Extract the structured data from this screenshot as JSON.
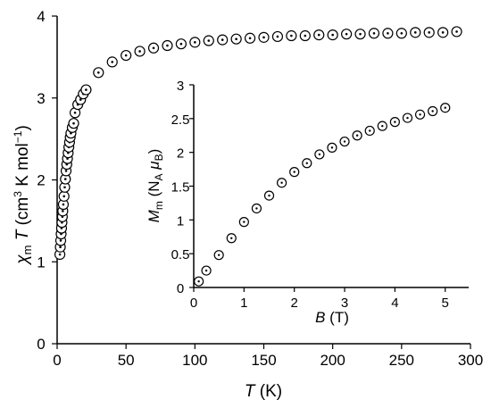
{
  "chart_data": [
    {
      "type": "scatter",
      "xlabel": {
        "main": "T",
        "unit": "(K)"
      },
      "ylabel": {
        "chi": "χ",
        "chi_sub": "m",
        "T": "T",
        "unit_start": "(cm",
        "unit_sup": "3",
        "unit_mid": " K mol",
        "unit_sup2": "−1",
        "unit_end": ")"
      },
      "xlim": [
        0,
        300
      ],
      "ylim": [
        0,
        4
      ],
      "xticks": [
        "0",
        "50",
        "100",
        "150",
        "200",
        "250",
        "300"
      ],
      "yticks": [
        "0",
        "1",
        "2",
        "3",
        "4"
      ],
      "marker": "circle-with-dot",
      "points": [
        [
          2,
          1.09
        ],
        [
          2.3,
          1.18
        ],
        [
          2.6,
          1.26
        ],
        [
          2.9,
          1.34
        ],
        [
          3.2,
          1.41
        ],
        [
          3.5,
          1.48
        ],
        [
          3.8,
          1.55
        ],
        [
          4.1,
          1.62
        ],
        [
          4.5,
          1.7
        ],
        [
          5,
          1.8
        ],
        [
          5.5,
          1.91
        ],
        [
          6,
          2.01
        ],
        [
          6.5,
          2.11
        ],
        [
          7,
          2.19
        ],
        [
          7.5,
          2.26
        ],
        [
          8,
          2.33
        ],
        [
          8.5,
          2.4
        ],
        [
          9,
          2.46
        ],
        [
          9.5,
          2.52
        ],
        [
          10,
          2.57
        ],
        [
          11,
          2.64
        ],
        [
          12,
          2.69
        ],
        [
          13,
          2.82
        ],
        [
          15,
          2.92
        ],
        [
          17,
          2.98
        ],
        [
          19,
          3.05
        ],
        [
          21,
          3.1
        ],
        [
          30,
          3.31
        ],
        [
          40,
          3.44
        ],
        [
          50,
          3.52
        ],
        [
          60,
          3.57
        ],
        [
          70,
          3.61
        ],
        [
          80,
          3.64
        ],
        [
          90,
          3.66
        ],
        [
          100,
          3.68
        ],
        [
          110,
          3.7
        ],
        [
          120,
          3.71
        ],
        [
          130,
          3.72
        ],
        [
          140,
          3.73
        ],
        [
          150,
          3.74
        ],
        [
          160,
          3.75
        ],
        [
          170,
          3.76
        ],
        [
          180,
          3.76
        ],
        [
          190,
          3.77
        ],
        [
          200,
          3.77
        ],
        [
          210,
          3.78
        ],
        [
          220,
          3.78
        ],
        [
          230,
          3.79
        ],
        [
          240,
          3.79
        ],
        [
          250,
          3.79
        ],
        [
          260,
          3.8
        ],
        [
          270,
          3.8
        ],
        [
          280,
          3.8
        ],
        [
          290,
          3.81
        ]
      ]
    },
    {
      "type": "scatter",
      "inset": true,
      "xlabel": {
        "main": "B",
        "unit": "(T)"
      },
      "ylabel": {
        "M": "M",
        "M_sub": "m",
        "open": "(N",
        "N_sub": "A",
        "mu": "μ",
        "mu_sub": "B",
        "close": ")"
      },
      "xlim": [
        0,
        5.2
      ],
      "ylim": [
        0,
        3
      ],
      "xticks": [
        "0",
        "1",
        "2",
        "3",
        "4",
        "5"
      ],
      "yticks": [
        "0",
        "0.5",
        "1",
        "1.5",
        "2",
        "2.5",
        "3"
      ],
      "marker": "circle-with-dot",
      "points": [
        [
          0.1,
          0.09
        ],
        [
          0.25,
          0.25
        ],
        [
          0.5,
          0.48
        ],
        [
          0.75,
          0.73
        ],
        [
          1.0,
          0.97
        ],
        [
          1.25,
          1.17
        ],
        [
          1.5,
          1.36
        ],
        [
          1.75,
          1.55
        ],
        [
          2.0,
          1.71
        ],
        [
          2.25,
          1.84
        ],
        [
          2.5,
          1.97
        ],
        [
          2.75,
          2.07
        ],
        [
          3.0,
          2.16
        ],
        [
          3.25,
          2.25
        ],
        [
          3.5,
          2.32
        ],
        [
          3.75,
          2.39
        ],
        [
          4.0,
          2.45
        ],
        [
          4.25,
          2.51
        ],
        [
          4.5,
          2.56
        ],
        [
          4.75,
          2.61
        ],
        [
          5.0,
          2.66
        ]
      ]
    }
  ]
}
